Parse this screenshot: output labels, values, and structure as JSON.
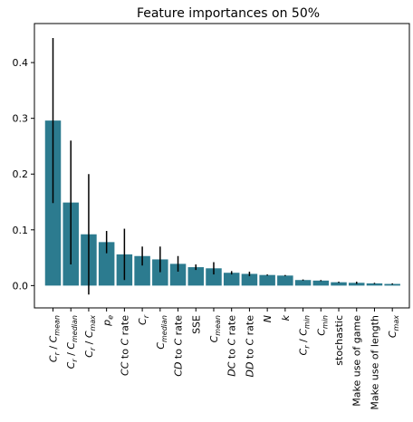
{
  "chart_data": {
    "type": "bar",
    "title": "Feature importances on 50%",
    "xlabel": "",
    "ylabel": "",
    "ylim": [
      -0.04,
      0.47
    ],
    "yticks": [
      0.0,
      0.1,
      0.2,
      0.3,
      0.4
    ],
    "ytick_labels": [
      "0.0",
      "0.1",
      "0.2",
      "0.3",
      "0.4"
    ],
    "grid": false,
    "legend": false,
    "bar_color": "#2c7b8f",
    "error_color": "#000000",
    "categories": [
      "C_r / C_mean",
      "C_r / C_median",
      "C_r / C_max",
      "p_e",
      "CC to C rate",
      "C_r",
      "C_median",
      "CD to C rate",
      "SSE",
      "C_mean",
      "DC to C rate",
      "DD to C rate",
      "N",
      "k",
      "C_r / C_min",
      "C_min",
      "stochastic",
      "Make use of game",
      "Make use of length",
      "C_max"
    ],
    "category_labels": [
      {
        "parts": [
          [
            "C",
            "i"
          ],
          [
            "r",
            "sub"
          ],
          [
            " / ",
            ""
          ],
          [
            "C",
            "i"
          ],
          [
            "mean",
            "sub"
          ]
        ]
      },
      {
        "parts": [
          [
            "C",
            "i"
          ],
          [
            "r",
            "sub"
          ],
          [
            " / ",
            ""
          ],
          [
            "C",
            "i"
          ],
          [
            "median",
            "sub"
          ]
        ]
      },
      {
        "parts": [
          [
            "C",
            "i"
          ],
          [
            "r",
            "sub"
          ],
          [
            " / ",
            ""
          ],
          [
            "C",
            "i"
          ],
          [
            "max",
            "sub"
          ]
        ]
      },
      {
        "parts": [
          [
            "p",
            "i"
          ],
          [
            "e",
            "sub"
          ]
        ]
      },
      {
        "parts": [
          [
            "CC",
            "i"
          ],
          [
            " to ",
            ""
          ],
          [
            "C",
            "i"
          ],
          [
            " rate",
            ""
          ]
        ]
      },
      {
        "parts": [
          [
            "C",
            "i"
          ],
          [
            "r",
            "sub"
          ]
        ]
      },
      {
        "parts": [
          [
            "C",
            "i"
          ],
          [
            "median",
            "sub"
          ]
        ]
      },
      {
        "parts": [
          [
            "CD",
            "i"
          ],
          [
            " to ",
            ""
          ],
          [
            "C",
            "i"
          ],
          [
            " rate",
            ""
          ]
        ]
      },
      {
        "parts": [
          [
            "SSE",
            ""
          ]
        ]
      },
      {
        "parts": [
          [
            "C",
            "i"
          ],
          [
            "mean",
            "sub"
          ]
        ]
      },
      {
        "parts": [
          [
            "DC",
            "i"
          ],
          [
            " to ",
            ""
          ],
          [
            "C",
            "i"
          ],
          [
            " rate",
            ""
          ]
        ]
      },
      {
        "parts": [
          [
            "DD",
            "i"
          ],
          [
            " to ",
            ""
          ],
          [
            "C",
            "i"
          ],
          [
            " rate",
            ""
          ]
        ]
      },
      {
        "parts": [
          [
            "N",
            "i"
          ]
        ]
      },
      {
        "parts": [
          [
            "k",
            "i"
          ]
        ]
      },
      {
        "parts": [
          [
            "C",
            "i"
          ],
          [
            "r",
            "sub"
          ],
          [
            " / ",
            ""
          ],
          [
            "C",
            "i"
          ],
          [
            "min",
            "sub"
          ]
        ]
      },
      {
        "parts": [
          [
            "C",
            "i"
          ],
          [
            "min",
            "sub"
          ]
        ]
      },
      {
        "parts": [
          [
            "stochastic",
            ""
          ]
        ]
      },
      {
        "parts": [
          [
            "Make use of game",
            ""
          ]
        ]
      },
      {
        "parts": [
          [
            "Make use of length",
            ""
          ]
        ]
      },
      {
        "parts": [
          [
            "C",
            "i"
          ],
          [
            "max",
            "sub"
          ]
        ]
      }
    ],
    "values": [
      0.296,
      0.149,
      0.092,
      0.078,
      0.056,
      0.053,
      0.047,
      0.039,
      0.033,
      0.031,
      0.023,
      0.021,
      0.019,
      0.018,
      0.01,
      0.009,
      0.006,
      0.005,
      0.004,
      0.003
    ],
    "errors": [
      0.148,
      0.111,
      0.108,
      0.02,
      0.046,
      0.017,
      0.023,
      0.014,
      0.005,
      0.011,
      0.003,
      0.004,
      0.001,
      0.001,
      0.001,
      0.001,
      0.001,
      0.002,
      0.001,
      0.001
    ]
  }
}
